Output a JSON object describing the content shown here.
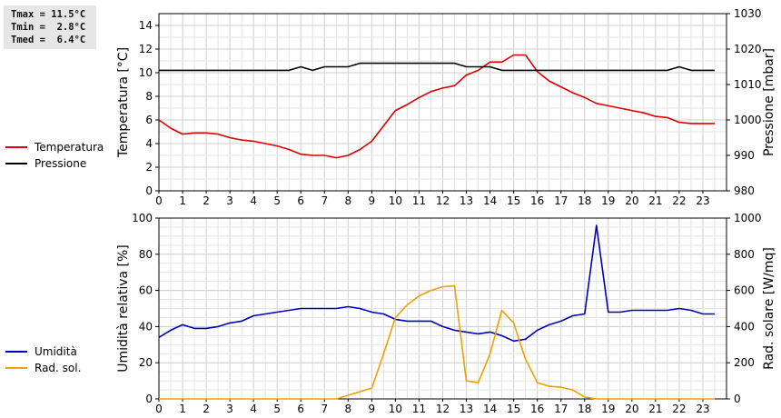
{
  "stats": {
    "tmax": "Tmax = 11.5°C",
    "tmin": "Tmin =  2.8°C",
    "tmed": "Tmed =  6.4°C"
  },
  "chart_data": [
    {
      "type": "line",
      "x": [
        0,
        0.5,
        1,
        1.5,
        2,
        2.5,
        3,
        3.5,
        4,
        4.5,
        5,
        5.5,
        6,
        6.5,
        7,
        7.5,
        8,
        8.5,
        9,
        9.5,
        10,
        10.5,
        11,
        11.5,
        12,
        12.5,
        13,
        13.5,
        14,
        14.5,
        15,
        15.5,
        16,
        16.5,
        17,
        17.5,
        18,
        18.5,
        19,
        19.5,
        20,
        20.5,
        21,
        21.5,
        22,
        22.5,
        23,
        23.5
      ],
      "xlim": [
        0,
        24
      ],
      "xticks": [
        "0",
        "1",
        "2",
        "3",
        "4",
        "5",
        "6",
        "7",
        "8",
        "9",
        "10",
        "11",
        "12",
        "13",
        "14",
        "15",
        "16",
        "17",
        "18",
        "19",
        "20",
        "21",
        "22",
        "23"
      ],
      "series": [
        {
          "name": "Temperatura",
          "axis": "left",
          "color": "#dd0000",
          "values": [
            6.0,
            5.3,
            4.8,
            4.9,
            4.9,
            4.8,
            4.5,
            4.3,
            4.2,
            4.0,
            3.8,
            3.5,
            3.1,
            3.0,
            3.0,
            2.8,
            3.0,
            3.5,
            4.2,
            5.5,
            6.8,
            7.3,
            7.9,
            8.4,
            8.7,
            8.9,
            9.8,
            10.2,
            10.9,
            10.9,
            11.5,
            11.5,
            10.1,
            9.3,
            8.8,
            8.3,
            7.9,
            7.4,
            7.2,
            7.0,
            6.8,
            6.6,
            6.3,
            6.2,
            5.8,
            5.7,
            5.7,
            5.7
          ]
        },
        {
          "name": "Pressione",
          "axis": "right",
          "color": "#000000",
          "values": [
            1014,
            1014,
            1014,
            1014,
            1014,
            1014,
            1014,
            1014,
            1014,
            1014,
            1014,
            1014,
            1015,
            1014,
            1015,
            1015,
            1015,
            1016,
            1016,
            1016,
            1016,
            1016,
            1016,
            1016,
            1016,
            1016,
            1015,
            1015,
            1015,
            1014,
            1014,
            1014,
            1014,
            1014,
            1014,
            1014,
            1014,
            1014,
            1014,
            1014,
            1014,
            1014,
            1014,
            1014,
            1015,
            1014,
            1014,
            1014
          ]
        }
      ],
      "ylabel": "Temperatura [°C]",
      "ylim": [
        0,
        15
      ],
      "yticks": [
        "0",
        "2",
        "4",
        "6",
        "8",
        "10",
        "12",
        "14"
      ],
      "y2label": "Pressione [mbar]",
      "y2lim": [
        980,
        1030
      ],
      "y2ticks": [
        "980",
        "990",
        "1000",
        "1010",
        "1020",
        "1030"
      ],
      "legend": [
        "Temperatura",
        "Pressione"
      ],
      "legend_position": "left",
      "grid": true
    },
    {
      "type": "line",
      "x": [
        0,
        0.5,
        1,
        1.5,
        2,
        2.5,
        3,
        3.5,
        4,
        4.5,
        5,
        5.5,
        6,
        6.5,
        7,
        7.5,
        8,
        8.5,
        9,
        9.5,
        10,
        10.5,
        11,
        11.5,
        12,
        12.5,
        13,
        13.5,
        14,
        14.5,
        15,
        15.5,
        16,
        16.5,
        17,
        17.5,
        18,
        18.5,
        19,
        19.5,
        20,
        20.5,
        21,
        21.5,
        22,
        22.5,
        23,
        23.5
      ],
      "xlim": [
        0,
        24
      ],
      "xticks": [
        "0",
        "1",
        "2",
        "3",
        "4",
        "5",
        "6",
        "7",
        "8",
        "9",
        "10",
        "11",
        "12",
        "13",
        "14",
        "15",
        "16",
        "17",
        "18",
        "19",
        "20",
        "21",
        "22",
        "23"
      ],
      "series": [
        {
          "name": "Umidità",
          "axis": "left",
          "color": "#0000bb",
          "values": [
            34,
            38,
            41,
            39,
            39,
            40,
            42,
            43,
            46,
            47,
            48,
            49,
            50,
            50,
            50,
            50,
            51,
            50,
            48,
            47,
            44,
            43,
            43,
            43,
            40,
            38,
            37,
            36,
            37,
            35,
            32,
            33,
            38,
            41,
            43,
            46,
            47,
            96,
            48,
            48,
            49,
            49,
            49,
            49,
            50,
            49,
            47,
            47
          ]
        },
        {
          "name": "Rad. sol.",
          "axis": "right",
          "color": "#f0a000",
          "values": [
            0,
            0,
            0,
            0,
            0,
            0,
            0,
            0,
            0,
            0,
            0,
            0,
            0,
            0,
            0,
            0,
            20,
            40,
            60,
            250,
            450,
            520,
            570,
            600,
            620,
            625,
            100,
            90,
            250,
            490,
            420,
            220,
            90,
            70,
            65,
            50,
            10,
            0,
            0,
            0,
            0,
            0,
            0,
            0,
            0,
            0,
            0,
            0
          ]
        }
      ],
      "ylabel": "Umidità relativa [%]",
      "ylim": [
        0,
        100
      ],
      "yticks": [
        "0",
        "20",
        "40",
        "60",
        "80",
        "100"
      ],
      "y2label": "Rad. solare [W/mq]",
      "y2lim": [
        0,
        1000
      ],
      "y2ticks": [
        "0",
        "200",
        "400",
        "600",
        "800",
        "1000"
      ],
      "legend": [
        "Umidità",
        "Rad. sol."
      ],
      "legend_position": "left",
      "grid": true
    }
  ]
}
